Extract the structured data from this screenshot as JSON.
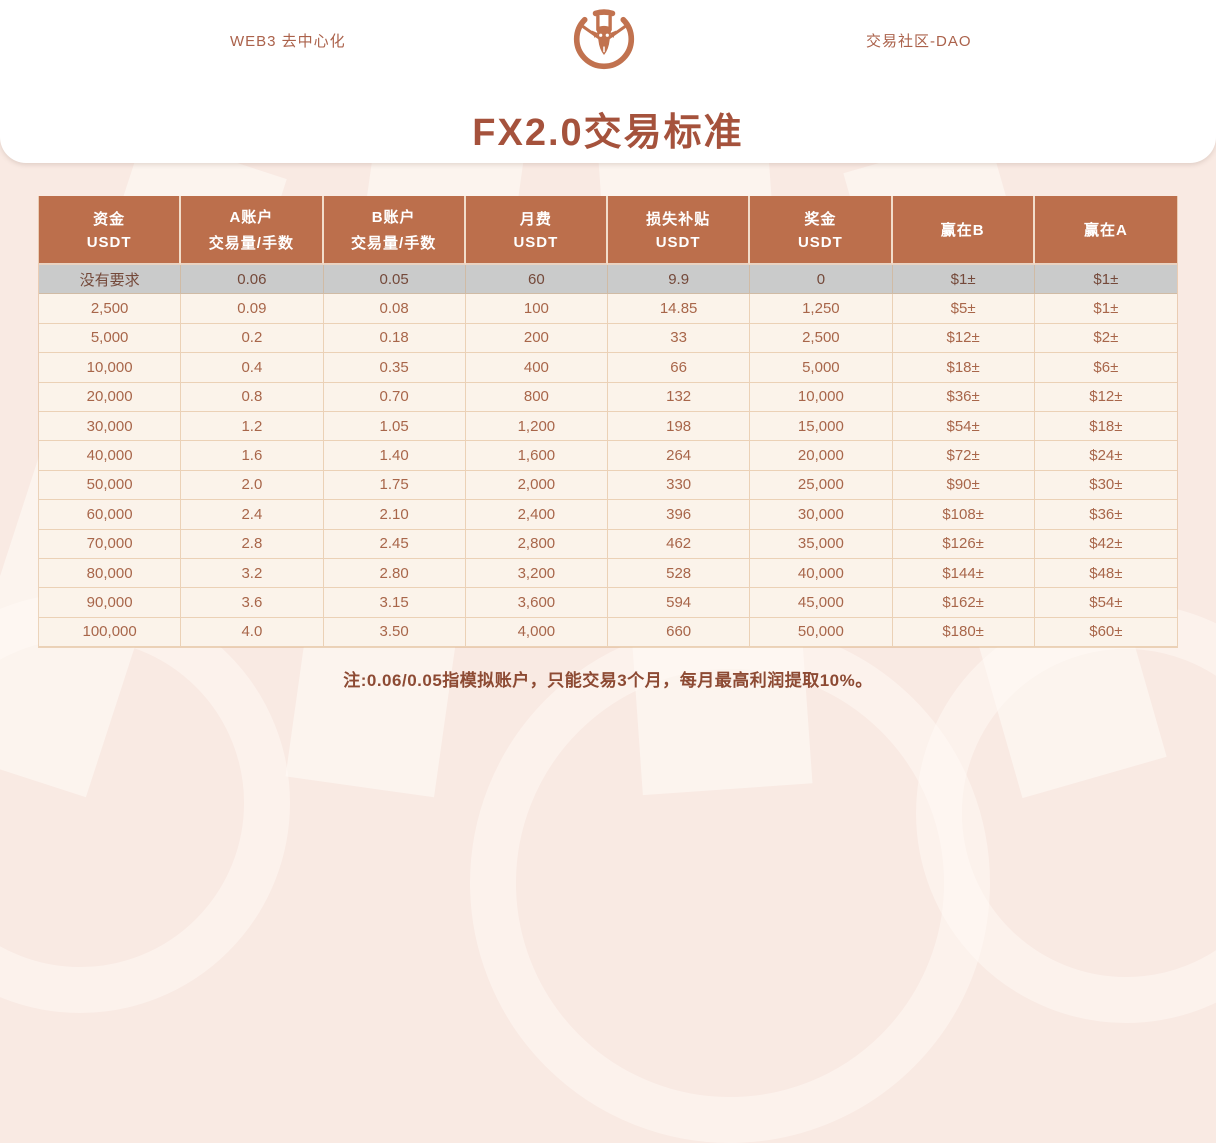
{
  "header": {
    "left_text": "WEB3 去中心化",
    "right_text": "交易社区-DAO",
    "logo": "antelope-emblem"
  },
  "title": "FX2.0交易标准",
  "table": {
    "columns": [
      {
        "line1": "资金",
        "line2": "USDT"
      },
      {
        "line1": "A账户",
        "line2": "交易量/手数"
      },
      {
        "line1": "B账户",
        "line2": "交易量/手数"
      },
      {
        "line1": "月费",
        "line2": "USDT"
      },
      {
        "line1": "损失补贴",
        "line2": "USDT"
      },
      {
        "line1": "奖金",
        "line2": "USDT"
      },
      {
        "line1": "赢在B",
        "line2": ""
      },
      {
        "line1": "赢在A",
        "line2": ""
      }
    ],
    "rows": [
      [
        "没有要求",
        "0.06",
        "0.05",
        "60",
        "9.9",
        "0",
        "$1±",
        "$1±"
      ],
      [
        "2,500",
        "0.09",
        "0.08",
        "100",
        "14.85",
        "1,250",
        "$5±",
        "$1±"
      ],
      [
        "5,000",
        "0.2",
        "0.18",
        "200",
        "33",
        "2,500",
        "$12±",
        "$2±"
      ],
      [
        "10,000",
        "0.4",
        "0.35",
        "400",
        "66",
        "5,000",
        "$18±",
        "$6±"
      ],
      [
        "20,000",
        "0.8",
        "0.70",
        "800",
        "132",
        "10,000",
        "$36±",
        "$12±"
      ],
      [
        "30,000",
        "1.2",
        "1.05",
        "1,200",
        "198",
        "15,000",
        "$54±",
        "$18±"
      ],
      [
        "40,000",
        "1.6",
        "1.40",
        "1,600",
        "264",
        "20,000",
        "$72±",
        "$24±"
      ],
      [
        "50,000",
        "2.0",
        "1.75",
        "2,000",
        "330",
        "25,000",
        "$90±",
        "$30±"
      ],
      [
        "60,000",
        "2.4",
        "2.10",
        "2,400",
        "396",
        "30,000",
        "$108±",
        "$36±"
      ],
      [
        "70,000",
        "2.8",
        "2.45",
        "2,800",
        "462",
        "35,000",
        "$126±",
        "$42±"
      ],
      [
        "80,000",
        "3.2",
        "2.80",
        "3,200",
        "528",
        "40,000",
        "$144±",
        "$48±"
      ],
      [
        "90,000",
        "3.6",
        "3.15",
        "3,600",
        "594",
        "45,000",
        "$162±",
        "$54±"
      ],
      [
        "100,000",
        "4.0",
        "3.50",
        "4,000",
        "660",
        "50,000",
        "$180±",
        "$60±"
      ]
    ],
    "highlight_row_index": 0
  },
  "note": "注:0.06/0.05指模拟账户，只能交易3个月，每月最高利润提取10%。",
  "colors": {
    "accent": "#bc6f4c",
    "title": "#a5523c",
    "highlight_row_bg": "#cacbcb",
    "row_bg": "#fbf3ea",
    "page_bg": "#f9eae3",
    "note_text": "#8d4a33"
  }
}
